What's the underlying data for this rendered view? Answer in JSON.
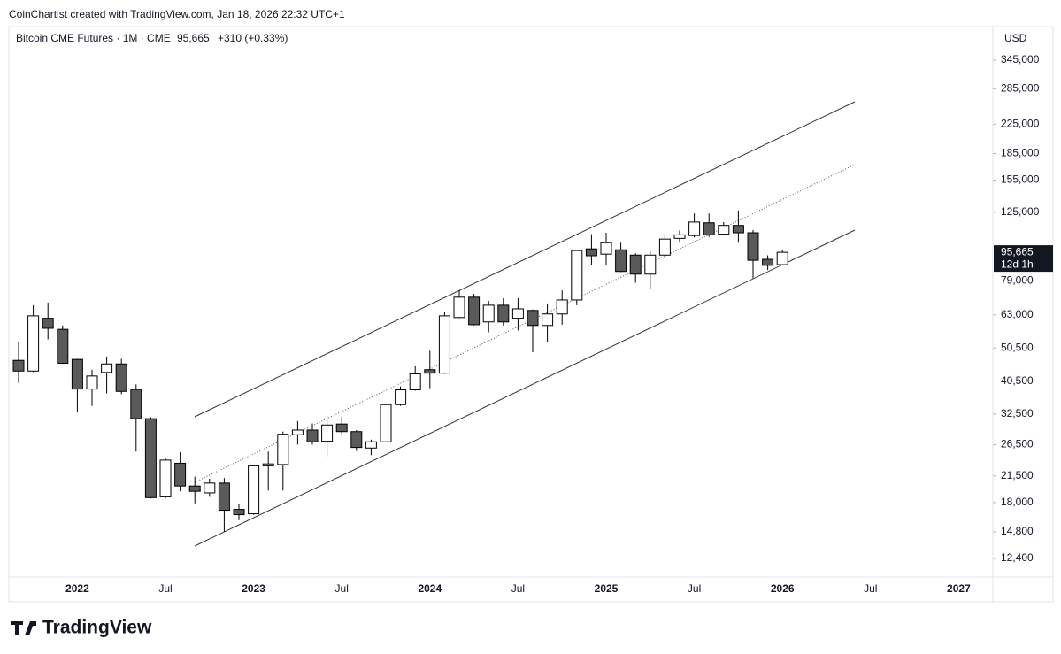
{
  "header": {
    "attribution": "CoinChartist created with TradingView.com, Jan 18, 2026 22:32 UTC+1"
  },
  "chart_data": {
    "type": "candlestick",
    "title": "Bitcoin CME Futures · 1M · CME",
    "last_price": {
      "value": 95665,
      "label": "95,665"
    },
    "change": "+310 (+0.33%)",
    "countdown": "12d 1h",
    "currency": "USD",
    "categories": [
      null,
      null,
      null,
      null,
      "2022",
      null,
      null,
      null,
      null,
      null,
      "Jul",
      null,
      null,
      null,
      null,
      null,
      "2023",
      null,
      null,
      null,
      null,
      null,
      "Jul",
      null,
      null,
      null,
      null,
      null,
      "2024",
      null,
      null,
      null,
      null,
      null,
      "Jul",
      null,
      null,
      null,
      null,
      null,
      "2025",
      null,
      null,
      null,
      null,
      null,
      "Jul",
      null,
      null,
      null,
      null,
      null,
      "2026",
      null,
      null,
      null,
      null,
      null,
      "Jul",
      null,
      null,
      null,
      null,
      null,
      "2027"
    ],
    "open": [
      46500,
      43300,
      61600,
      57200,
      46800,
      38400,
      42900,
      45400,
      38300,
      31500,
      18700,
      23400,
      20100,
      19200,
      20500,
      17200,
      16700,
      23000,
      23200,
      28300,
      29200,
      27100,
      30400,
      28900,
      25900,
      27000,
      34600,
      38200,
      43700,
      42700,
      61900,
      70900,
      60100,
      67200,
      61600,
      64900,
      58700,
      63400,
      69600,
      97900,
      94500,
      97300,
      93900,
      82700,
      93900,
      105000,
      107000,
      116500,
      108000,
      114500,
      109000,
      91300,
      88100,
      null,
      null,
      null,
      null,
      null,
      null,
      null,
      null,
      null,
      null,
      null,
      null
    ],
    "high": [
      52600,
      67200,
      68400,
      58700,
      47000,
      43700,
      47700,
      47000,
      39600,
      31800,
      24300,
      25200,
      21400,
      21100,
      21200,
      17800,
      23100,
      25300,
      28900,
      31000,
      30500,
      32100,
      31900,
      29200,
      27400,
      34800,
      39100,
      44700,
      49600,
      64400,
      74200,
      72500,
      69200,
      70400,
      70400,
      65300,
      68000,
      74200,
      97300,
      108000,
      109000,
      102000,
      95000,
      96200,
      108000,
      110800,
      124000,
      124000,
      117000,
      126500,
      111000,
      93800,
      97500,
      null,
      null,
      null,
      null,
      null,
      null,
      null,
      null,
      null,
      null,
      null,
      null
    ],
    "low": [
      40000,
      43000,
      53500,
      45400,
      33000,
      34300,
      37300,
      37100,
      25300,
      18500,
      18500,
      19400,
      17900,
      18700,
      14800,
      16000,
      16600,
      19500,
      19500,
      26500,
      26500,
      24500,
      28400,
      25400,
      24700,
      26900,
      34300,
      38000,
      38600,
      42500,
      61600,
      58700,
      56100,
      58700,
      56800,
      49100,
      52400,
      59000,
      67200,
      88100,
      87600,
      83800,
      78100,
      75000,
      92800,
      102000,
      105700,
      106000,
      107000,
      102000,
      80500,
      85000,
      88100,
      null,
      null,
      null,
      null,
      null,
      null,
      null,
      null,
      null,
      null,
      null,
      null
    ],
    "close": [
      43300,
      62600,
      57600,
      45600,
      38400,
      41900,
      45400,
      37800,
      31500,
      18600,
      23900,
      20100,
      19400,
      20500,
      17100,
      16600,
      23000,
      23300,
      28400,
      29200,
      27000,
      30200,
      28900,
      26000,
      27000,
      34600,
      38200,
      42500,
      42700,
      62600,
      70900,
      59000,
      67200,
      60100,
      65600,
      58700,
      63400,
      69600,
      96800,
      93500,
      102000,
      84200,
      82700,
      93900,
      104500,
      107500,
      117100,
      107500,
      114500,
      109000,
      90700,
      87700,
      95665,
      null,
      null,
      null,
      null,
      null,
      null,
      null,
      null,
      null,
      null,
      null,
      null
    ],
    "ylim": [
      10950,
      431800
    ],
    "yticks": [
      {
        "value": 12400,
        "label": "12,400"
      },
      {
        "value": 14800,
        "label": "14,800"
      },
      {
        "value": 18000,
        "label": "18,000"
      },
      {
        "value": 21500,
        "label": "21,500"
      },
      {
        "value": 26500,
        "label": "26,500"
      },
      {
        "value": 32500,
        "label": "32,500"
      },
      {
        "value": 40500,
        "label": "40,500"
      },
      {
        "value": 50500,
        "label": "50,500"
      },
      {
        "value": 63000,
        "label": "63,000"
      },
      {
        "value": 79000,
        "label": "79,000"
      },
      {
        "value": 125000,
        "label": "125,000"
      },
      {
        "value": 155000,
        "label": "155,000"
      },
      {
        "value": 185000,
        "label": "185,000"
      },
      {
        "value": 225000,
        "label": "225,000"
      },
      {
        "value": 285000,
        "label": "285,000"
      },
      {
        "value": 345000,
        "label": "345,000"
      }
    ],
    "log_scale": true,
    "up_color": "#ffffff",
    "down_color": "#5a5a5a",
    "border_color": "#000000"
  },
  "footer": {
    "logo": "TradingView"
  }
}
